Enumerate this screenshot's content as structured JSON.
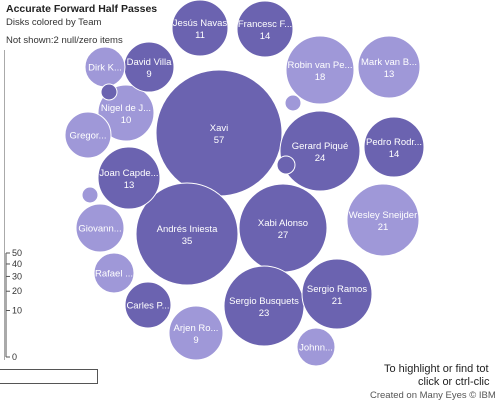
{
  "header": {
    "title": "Accurate Forward Half Passes",
    "subtitle": "Disks colored by Team",
    "note": "Not shown:2 null/zero items"
  },
  "footer": {
    "hint_line1": "To highlight or find tot",
    "hint_line2": "click or ctrl-clic",
    "credit": "Created on Many Eyes © IBM"
  },
  "colors": {
    "team_dark": "#6b63b0",
    "team_light": "#9f98d8",
    "stroke": "#ffffff"
  },
  "chart_data": {
    "type": "bubble",
    "title": "Accurate Forward Half Passes",
    "subtitle": "Disks colored by Team",
    "size_legend": {
      "ticks": [
        0,
        10,
        20,
        30,
        40,
        50
      ]
    },
    "items": [
      {
        "name": "Xavi",
        "label": "Xavi",
        "value": 57,
        "team": "dark"
      },
      {
        "name": "Andrés Iniesta",
        "label": "Andrés Iniesta",
        "value": 35,
        "team": "dark"
      },
      {
        "name": "Xabi Alonso",
        "label": "Xabi Alonso",
        "value": 27,
        "team": "dark"
      },
      {
        "name": "Gerard Piqué",
        "label": "Gerard Piqué",
        "value": 24,
        "team": "dark"
      },
      {
        "name": "Sergio Busquets",
        "label": "Sergio Busquets",
        "value": 23,
        "team": "dark"
      },
      {
        "name": "Sergio Ramos",
        "label": "Sergio Ramos",
        "value": 21,
        "team": "dark"
      },
      {
        "name": "Wesley Sneijder",
        "label": "Wesley Sneijder",
        "value": 21,
        "team": "light"
      },
      {
        "name": "Robin van Persie",
        "label": "Robin van Pe...",
        "value": 18,
        "team": "light"
      },
      {
        "name": "Francesc F",
        "label": "Francesc F...",
        "value": 14,
        "team": "dark"
      },
      {
        "name": "Pedro Rodr",
        "label": "Pedro Rodr...",
        "value": 14,
        "team": "dark"
      },
      {
        "name": "Mark van B",
        "label": "Mark van B...",
        "value": 13,
        "team": "light"
      },
      {
        "name": "Joan Capdevila",
        "label": "Joan Capde...",
        "value": 13,
        "team": "dark"
      },
      {
        "name": "Jesús Navas",
        "label": "Jesús Navas",
        "value": 11,
        "team": "dark"
      },
      {
        "name": "Nigel de Jong",
        "label": "Nigel de J...",
        "value": 10,
        "team": "light"
      },
      {
        "name": "David Villa",
        "label": "David Villa",
        "value": 9,
        "team": "dark"
      },
      {
        "name": "Arjen Robben",
        "label": "Arjen Ro...",
        "value": 9,
        "team": "light"
      },
      {
        "name": "Carles Puyol",
        "label": "Carles P...",
        "value": null,
        "team": "dark"
      },
      {
        "name": "Giovanni",
        "label": "Giovann...",
        "value": null,
        "team": "light"
      },
      {
        "name": "Gregory",
        "label": "Gregor...",
        "value": null,
        "team": "light"
      },
      {
        "name": "Dirk Kuyt",
        "label": "Dirk K...",
        "value": null,
        "team": "light"
      },
      {
        "name": "Rafael van der Vaart",
        "label": "Rafael ...",
        "value": null,
        "team": "light"
      },
      {
        "name": "John Heitinga",
        "label": "Johnn...",
        "value": null,
        "team": "light"
      },
      {
        "name": "small-1",
        "label": "",
        "value": null,
        "team": "light"
      },
      {
        "name": "small-2",
        "label": "",
        "value": null,
        "team": "dark"
      },
      {
        "name": "small-3",
        "label": "",
        "value": null,
        "team": "dark"
      },
      {
        "name": "small-4",
        "label": "",
        "value": null,
        "team": "light"
      }
    ]
  }
}
